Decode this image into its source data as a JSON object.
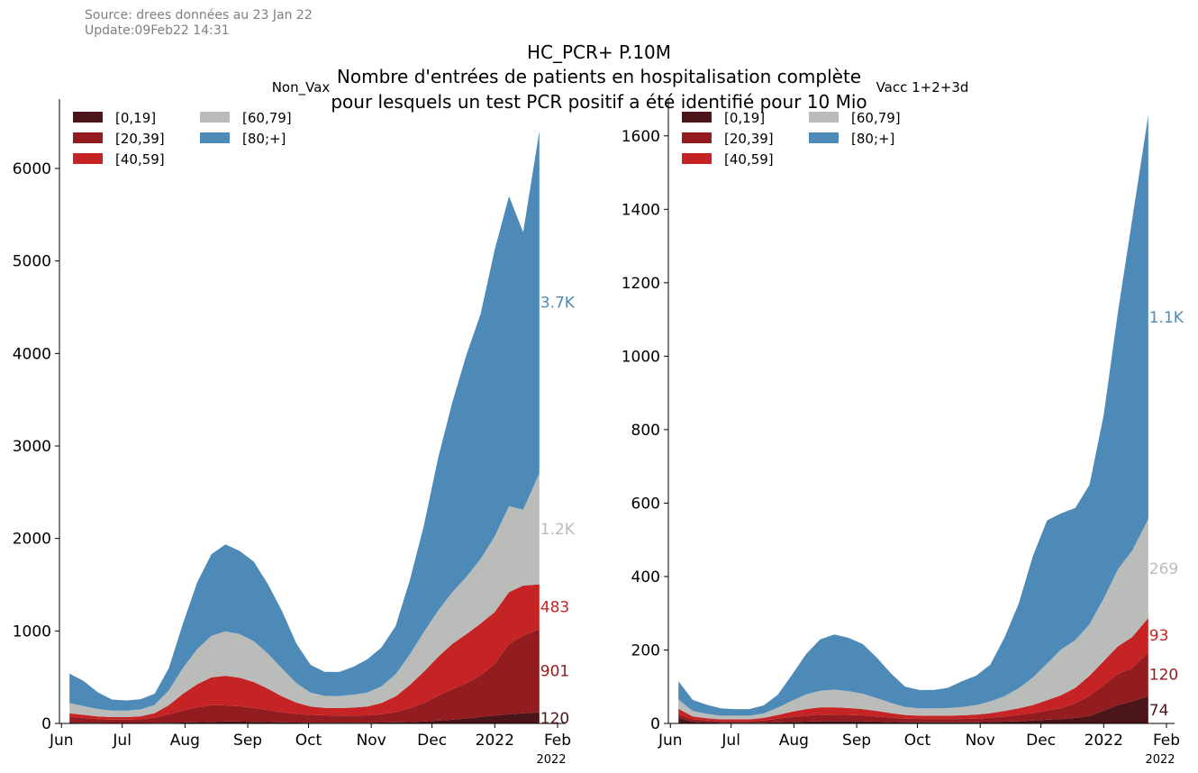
{
  "source_note": {
    "line1": "Source: drees données au 23 Jan 22",
    "line2": "Update:09Feb22 14:31"
  },
  "title": {
    "line1": "HC_PCR+ P.10M",
    "line2": "Nombre d'entrées de patients en hospitalisation complète",
    "line3": "pour lesquels un test PCR positif a été identifié pour 10 Mio"
  },
  "colors": {
    "[0,19]": "#4b1519",
    "[20,39]": "#931c20",
    "[40,59]": "#c62424",
    "[60,79]": "#b9bcb9",
    "[80;+]": "#4d8ab8"
  },
  "chart_data": [
    {
      "type": "area",
      "stacked": true,
      "title": "Non_Vax",
      "x_ticks": [
        "Jun",
        "Jul",
        "Aug",
        "Sep",
        "Oct",
        "Nov",
        "Dec",
        "2022",
        "Feb"
      ],
      "x_offset_label": "2022",
      "y_ticks": [
        0,
        1000,
        2000,
        3000,
        4000,
        5000,
        6000
      ],
      "ylim": [
        0,
        6750
      ],
      "xlim": [
        "2021-05-31",
        "2022-02-05"
      ],
      "legend_position": "top-left",
      "dates": [
        "2021-06-05",
        "2021-06-12",
        "2021-06-19",
        "2021-06-26",
        "2021-07-03",
        "2021-07-10",
        "2021-07-17",
        "2021-07-24",
        "2021-07-31",
        "2021-08-07",
        "2021-08-14",
        "2021-08-21",
        "2021-08-28",
        "2021-09-04",
        "2021-09-11",
        "2021-09-18",
        "2021-09-25",
        "2021-10-02",
        "2021-10-09",
        "2021-10-16",
        "2021-10-23",
        "2021-10-30",
        "2021-11-06",
        "2021-11-13",
        "2021-11-20",
        "2021-11-27",
        "2021-12-04",
        "2021-12-11",
        "2021-12-18",
        "2021-12-25",
        "2022-01-01",
        "2022-01-08",
        "2022-01-15",
        "2022-01-23"
      ],
      "series": [
        {
          "name": "[0,19]",
          "values": [
            10,
            8,
            6,
            5,
            5,
            5,
            6,
            8,
            10,
            14,
            18,
            20,
            20,
            18,
            15,
            12,
            10,
            8,
            8,
            8,
            8,
            8,
            10,
            12,
            15,
            20,
            30,
            40,
            55,
            70,
            85,
            100,
            110,
            120
          ]
        },
        {
          "name": "[20,39]",
          "values": [
            60,
            50,
            40,
            35,
            35,
            40,
            55,
            90,
            130,
            160,
            180,
            175,
            165,
            150,
            130,
            110,
            95,
            85,
            80,
            78,
            78,
            80,
            90,
            110,
            150,
            200,
            270,
            330,
            380,
            450,
            560,
            760,
            840,
            901
          ]
        },
        {
          "name": "[40,59]",
          "values": [
            40,
            35,
            30,
            28,
            28,
            32,
            50,
            100,
            180,
            250,
            300,
            320,
            310,
            280,
            230,
            170,
            120,
            90,
            80,
            80,
            85,
            95,
            120,
            170,
            250,
            340,
            420,
            490,
            530,
            560,
            560,
            560,
            540,
            483
          ]
        },
        {
          "name": "[60,79]",
          "values": [
            110,
            95,
            80,
            70,
            70,
            75,
            90,
            160,
            280,
            380,
            450,
            480,
            470,
            440,
            380,
            300,
            210,
            150,
            130,
            130,
            140,
            150,
            180,
            240,
            330,
            430,
            500,
            560,
            620,
            700,
            820,
            930,
            820,
            1200
          ]
        },
        {
          "name": "[80;+]",
          "values": [
            320,
            270,
            180,
            120,
            110,
            110,
            120,
            240,
            480,
            720,
            880,
            940,
            900,
            860,
            750,
            620,
            430,
            300,
            260,
            260,
            300,
            360,
            420,
            520,
            800,
            1150,
            1650,
            2050,
            2400,
            2650,
            3100,
            3350,
            3000,
            3700
          ]
        }
      ],
      "end_labels": [
        {
          "series": "[80;+]",
          "text": "3.7K"
        },
        {
          "series": "[60,79]",
          "text": "1.2K"
        },
        {
          "series": "[40,59]",
          "text": "483"
        },
        {
          "series": "[20,39]",
          "text": "901"
        },
        {
          "series": "[0,19]",
          "text": "120"
        }
      ]
    },
    {
      "type": "area",
      "stacked": true,
      "title": "Vacc 1+2+3d",
      "x_ticks": [
        "Jun",
        "Jul",
        "Aug",
        "Sep",
        "Oct",
        "Nov",
        "Dec",
        "2022",
        "Feb"
      ],
      "x_offset_label": "2022",
      "y_ticks": [
        0,
        200,
        400,
        600,
        800,
        1000,
        1200,
        1400,
        1600
      ],
      "ylim": [
        0,
        1700
      ],
      "xlim": [
        "2021-05-31",
        "2022-02-05"
      ],
      "legend_position": "top-left",
      "dates": [
        "2021-06-05",
        "2021-06-12",
        "2021-06-19",
        "2021-06-26",
        "2021-07-03",
        "2021-07-10",
        "2021-07-17",
        "2021-07-24",
        "2021-07-31",
        "2021-08-07",
        "2021-08-14",
        "2021-08-21",
        "2021-08-28",
        "2021-09-04",
        "2021-09-11",
        "2021-09-18",
        "2021-09-25",
        "2021-10-02",
        "2021-10-09",
        "2021-10-16",
        "2021-10-23",
        "2021-10-30",
        "2021-11-06",
        "2021-11-13",
        "2021-11-20",
        "2021-11-27",
        "2021-12-04",
        "2021-12-11",
        "2021-12-18",
        "2021-12-25",
        "2022-01-01",
        "2022-01-08",
        "2022-01-15",
        "2022-01-23"
      ],
      "series": [
        {
          "name": "[0,19]",
          "values": [
            15,
            5,
            3,
            2,
            2,
            2,
            2,
            3,
            4,
            5,
            6,
            6,
            6,
            6,
            5,
            4,
            3,
            3,
            3,
            3,
            3,
            3,
            4,
            5,
            6,
            8,
            10,
            12,
            15,
            20,
            35,
            50,
            60,
            74
          ]
        },
        {
          "name": "[20,39]",
          "values": [
            10,
            6,
            5,
            4,
            4,
            4,
            6,
            10,
            14,
            16,
            18,
            18,
            17,
            16,
            14,
            12,
            10,
            9,
            9,
            9,
            9,
            10,
            12,
            14,
            17,
            20,
            25,
            30,
            40,
            55,
            70,
            85,
            90,
            120
          ]
        },
        {
          "name": "[40,59]",
          "values": [
            15,
            8,
            6,
            5,
            5,
            5,
            7,
            10,
            14,
            18,
            20,
            20,
            19,
            17,
            15,
            12,
            10,
            9,
            9,
            9,
            10,
            11,
            12,
            15,
            18,
            22,
            28,
            35,
            42,
            55,
            65,
            75,
            85,
            93
          ]
        },
        {
          "name": "[60,79]",
          "values": [
            25,
            15,
            12,
            10,
            10,
            10,
            12,
            20,
            30,
            40,
            45,
            48,
            46,
            42,
            35,
            28,
            22,
            20,
            20,
            21,
            23,
            26,
            32,
            40,
            55,
            75,
            100,
            125,
            130,
            140,
            170,
            210,
            235,
            269
          ]
        },
        {
          "name": "[80;+]",
          "values": [
            50,
            30,
            25,
            20,
            18,
            18,
            22,
            35,
            70,
            110,
            140,
            150,
            145,
            135,
            110,
            80,
            55,
            50,
            50,
            55,
            70,
            80,
            100,
            160,
            230,
            330,
            390,
            370,
            360,
            380,
            500,
            700,
            900,
            1100
          ]
        }
      ],
      "end_labels": [
        {
          "series": "[80;+]",
          "text": "1.1K"
        },
        {
          "series": "[60,79]",
          "text": "269"
        },
        {
          "series": "[40,59]",
          "text": "93"
        },
        {
          "series": "[20,39]",
          "text": "120"
        },
        {
          "series": "[0,19]",
          "text": "74"
        }
      ]
    }
  ]
}
